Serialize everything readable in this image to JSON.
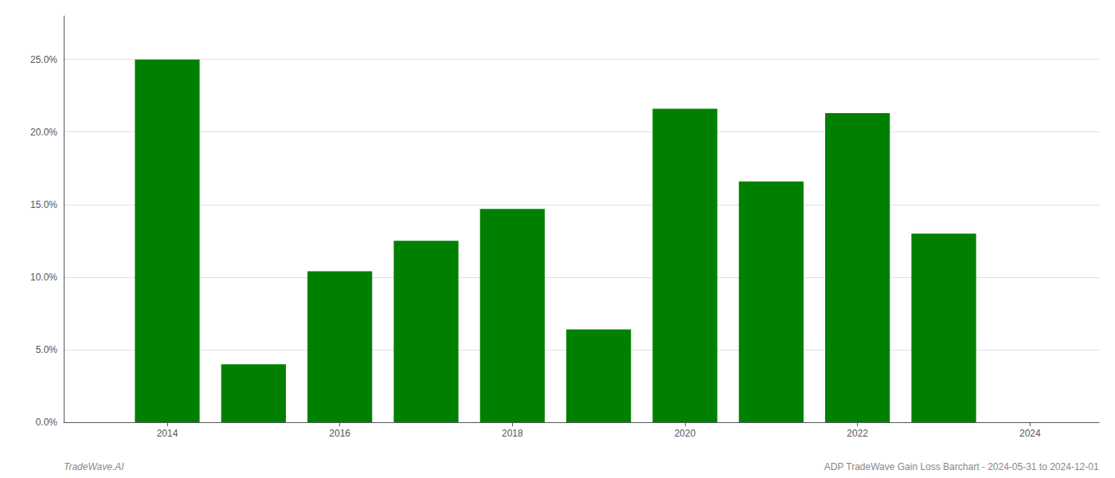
{
  "chart_data": {
    "type": "bar",
    "x": [
      2014,
      2015,
      2016,
      2017,
      2018,
      2019,
      2020,
      2021,
      2022,
      2023
    ],
    "values": [
      0.25,
      0.04,
      0.104,
      0.125,
      0.147,
      0.064,
      0.216,
      0.166,
      0.213,
      0.13
    ],
    "color": "#008000",
    "xlim": [
      2012.8,
      2024.8
    ],
    "xticks": [
      2014,
      2016,
      2018,
      2020,
      2022,
      2024
    ],
    "ylim": [
      0,
      0.28
    ],
    "yticks": [
      {
        "value": 0.0,
        "label": "0.0%"
      },
      {
        "value": 0.05,
        "label": "5.0%"
      },
      {
        "value": 0.1,
        "label": "10.0%"
      },
      {
        "value": 0.15,
        "label": "15.0%"
      },
      {
        "value": 0.2,
        "label": "20.0%"
      },
      {
        "value": 0.25,
        "label": "25.0%"
      }
    ],
    "grid": true,
    "annotations": [
      "TradeWave.AI",
      "ADP TradeWave Gain Loss Barchart - 2024-05-31 to 2024-12-01"
    ]
  }
}
